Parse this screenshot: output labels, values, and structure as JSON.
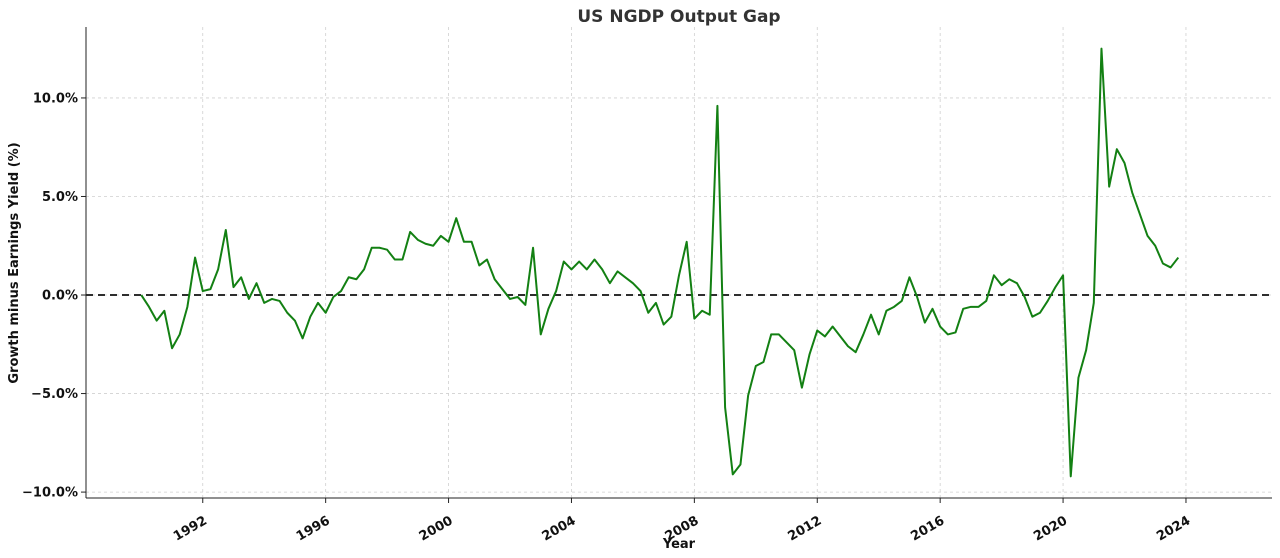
{
  "chart_data": {
    "type": "line",
    "title": "US NGDP Output Gap",
    "xlabel": "Year",
    "ylabel": "Growth minus Earnings Yield (%)",
    "x_ticks": [
      1992,
      1996,
      2000,
      2004,
      2008,
      2012,
      2016,
      2020,
      2024
    ],
    "y_ticks": [
      -10,
      -5,
      0,
      5,
      10
    ],
    "y_tick_labels": [
      "−10.0%",
      "−5.0%",
      "0.0%",
      "5.0%",
      "10.0%"
    ],
    "xlim": [
      1988.2,
      2026.8
    ],
    "ylim": [
      -10.3,
      13.6
    ],
    "grid": true,
    "zero_line": {
      "y": 0,
      "style": "dashed",
      "color": "#000000"
    },
    "color": "#138013",
    "series": [
      {
        "x": [
          1990.0,
          1990.25,
          1990.5,
          1990.75,
          1991.0,
          1991.25,
          1991.5,
          1991.75,
          1992.0,
          1992.25,
          1992.5,
          1992.75,
          1993.0,
          1993.25,
          1993.5,
          1993.75,
          1994.0,
          1994.25,
          1994.5,
          1994.75,
          1995.0,
          1995.25,
          1995.5,
          1995.75,
          1996.0,
          1996.25,
          1996.5,
          1996.75,
          1997.0,
          1997.25,
          1997.5,
          1997.75,
          1998.0,
          1998.25,
          1998.5,
          1998.75,
          1999.0,
          1999.25,
          1999.5,
          1999.75,
          2000.0,
          2000.25,
          2000.5,
          2000.75,
          2001.0,
          2001.25,
          2001.5,
          2001.75,
          2002.0,
          2002.25,
          2002.5,
          2002.75,
          2003.0,
          2003.25,
          2003.5,
          2003.75,
          2004.0,
          2004.25,
          2004.5,
          2004.75,
          2005.0,
          2005.25,
          2005.5,
          2005.75,
          2006.0,
          2006.25,
          2006.5,
          2006.75,
          2007.0,
          2007.25,
          2007.5,
          2007.75,
          2008.0,
          2008.25,
          2008.5,
          2008.75,
          2009.0,
          2009.25,
          2009.5,
          2009.75,
          2010.0,
          2010.25,
          2010.5,
          2010.75,
          2011.0,
          2011.25,
          2011.5,
          2011.75,
          2012.0,
          2012.25,
          2012.5,
          2012.75,
          2013.0,
          2013.25,
          2013.5,
          2013.75,
          2014.0,
          2014.25,
          2014.5,
          2014.75,
          2015.0,
          2015.25,
          2015.5,
          2015.75,
          2016.0,
          2016.25,
          2016.5,
          2016.75,
          2017.0,
          2017.25,
          2017.5,
          2017.75,
          2018.0,
          2018.25,
          2018.5,
          2018.75,
          2019.0,
          2019.25,
          2019.5,
          2019.75,
          2020.0,
          2020.25,
          2020.5,
          2020.75,
          2021.0,
          2021.25,
          2021.5,
          2021.75,
          2022.0,
          2022.25,
          2022.5,
          2022.75,
          2023.0,
          2023.25,
          2023.5,
          2023.75
        ],
        "y": [
          0.0,
          -0.6,
          -1.3,
          -0.8,
          -2.7,
          -2.0,
          -0.6,
          1.9,
          0.2,
          0.3,
          1.3,
          3.3,
          0.4,
          0.9,
          -0.2,
          0.6,
          -0.4,
          -0.2,
          -0.3,
          -0.9,
          -1.3,
          -2.2,
          -1.1,
          -0.4,
          -0.9,
          -0.1,
          0.2,
          0.9,
          0.8,
          1.3,
          2.4,
          2.4,
          2.3,
          1.8,
          1.8,
          3.2,
          2.8,
          2.6,
          2.5,
          3.0,
          2.7,
          3.9,
          2.7,
          2.7,
          1.5,
          1.8,
          0.8,
          0.3,
          -0.2,
          -0.1,
          -0.5,
          2.4,
          -2.0,
          -0.7,
          0.2,
          1.7,
          1.3,
          1.7,
          1.3,
          1.8,
          1.3,
          0.6,
          1.2,
          0.9,
          0.6,
          0.2,
          -0.9,
          -0.4,
          -1.5,
          -1.1,
          1.0,
          2.7,
          -1.2,
          -0.8,
          -1.0,
          9.6,
          -5.7,
          -9.1,
          -8.6,
          -5.1,
          -3.6,
          -3.4,
          -2.0,
          -2.0,
          -2.4,
          -2.8,
          -4.7,
          -3.0,
          -1.8,
          -2.1,
          -1.6,
          -2.1,
          -2.6,
          -2.9,
          -2.0,
          -1.0,
          -2.0,
          -0.8,
          -0.6,
          -0.3,
          0.9,
          -0.1,
          -1.4,
          -0.7,
          -1.6,
          -2.0,
          -1.9,
          -0.7,
          -0.6,
          -0.6,
          -0.3,
          1.0,
          0.5,
          0.8,
          0.6,
          -0.1,
          -1.1,
          -0.9,
          -0.3,
          0.4,
          1.0,
          -9.2,
          -4.2,
          -2.8,
          -0.4,
          12.5,
          5.5,
          7.4,
          6.7,
          5.2,
          4.1,
          3.0,
          2.5,
          1.6,
          1.4,
          1.9
        ]
      }
    ]
  }
}
